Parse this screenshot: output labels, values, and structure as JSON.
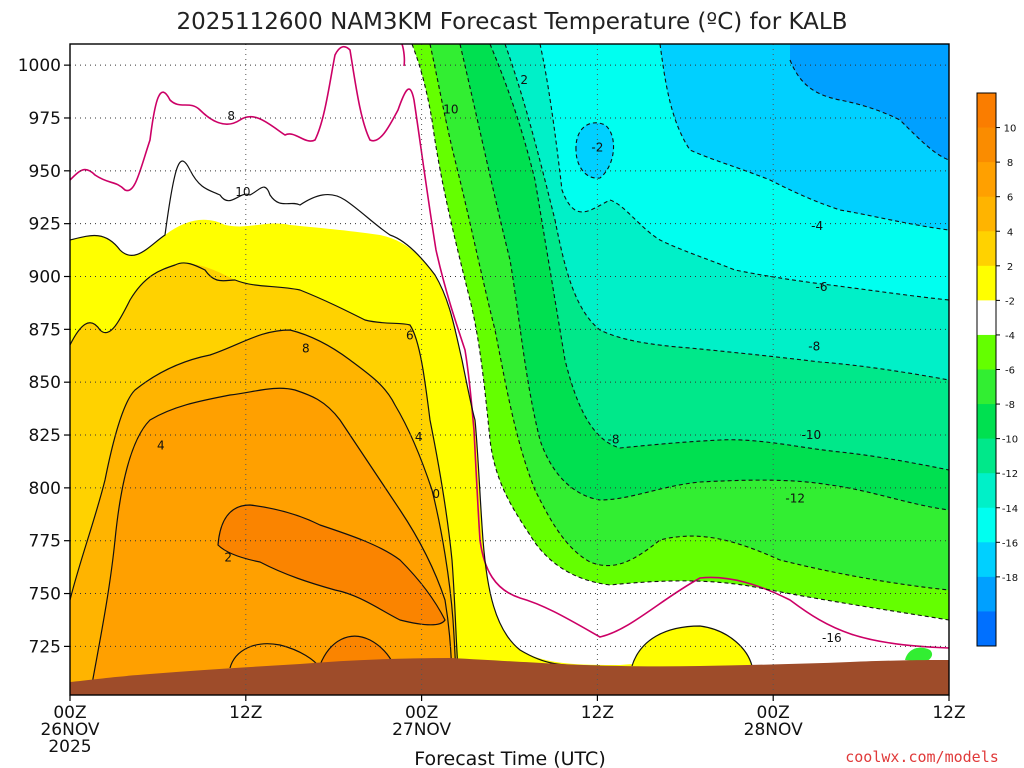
{
  "chart_data": {
    "type": "heatmap",
    "title": "2025112600 NAM3KM Forecast Temperature (ºC) for KALB",
    "xlabel": "Forecast Time (UTC)",
    "ylabel": "",
    "credit": "coolwx.com/models",
    "x_ticks": [
      {
        "hour": 0,
        "lines": [
          "00Z",
          "26NOV",
          "2025"
        ]
      },
      {
        "hour": 12,
        "lines": [
          "12Z"
        ]
      },
      {
        "hour": 24,
        "lines": [
          "00Z",
          "27NOV"
        ]
      },
      {
        "hour": 36,
        "lines": [
          "12Z"
        ]
      },
      {
        "hour": 48,
        "lines": [
          "00Z",
          "28NOV"
        ]
      },
      {
        "hour": 60,
        "lines": [
          "12Z"
        ]
      }
    ],
    "xlim": [
      0,
      60
    ],
    "y_ticks": [
      725,
      750,
      775,
      800,
      825,
      850,
      875,
      900,
      925,
      950,
      975,
      1000
    ],
    "ylim": [
      1010,
      702
    ],
    "colorbar": {
      "levels": [
        12,
        10,
        8,
        6,
        4,
        2,
        -2,
        -4,
        -6,
        -8,
        -10,
        -12,
        -14,
        -16,
        -18,
        -20
      ],
      "labels": [
        "10",
        "8",
        "6",
        "4",
        "2",
        "-2",
        "-4",
        "-6",
        "-8",
        "-10",
        "-12",
        "-14",
        "-16",
        "-18"
      ],
      "colors": [
        "#fa7d00",
        "#fa8c00",
        "#ffa000",
        "#ffb400",
        "#ffd200",
        "#ffff00",
        "#ffffff",
        "#64ff00",
        "#32ee32",
        "#00e050",
        "#00e88a",
        "#00f0c8",
        "#00fff0",
        "#00d0ff",
        "#00a0ff",
        "#0070ff"
      ]
    },
    "region_colors": {
      "ground": "#9e4c2a",
      "t10": "#fa8400",
      "t8": "#ffa000",
      "t6": "#ffb400",
      "t4": "#ffd200",
      "t2": "#ffff00",
      "t0": "#ffffff",
      "tm2": "#64ff00",
      "tm4": "#32ee32",
      "tm6": "#00e050",
      "tm8": "#00e88a",
      "tm10": "#00f0c8",
      "tm12": "#00fff0",
      "tm14": "#00d0ff",
      "tm16": "#00a0ff"
    },
    "contour_labels": [
      {
        "text": "2",
        "hour": 10.8,
        "p": 767
      },
      {
        "text": "4",
        "hour": 6.2,
        "p": 820
      },
      {
        "text": "0",
        "hour": 25.0,
        "p": 797
      },
      {
        "text": "4",
        "hour": 23.8,
        "p": 824
      },
      {
        "text": "8",
        "hour": 16.1,
        "p": 866
      },
      {
        "text": "6",
        "hour": 23.2,
        "p": 872
      },
      {
        "text": "10",
        "hour": 11.8,
        "p": 940
      },
      {
        "text": "8",
        "hour": 11.0,
        "p": 976
      },
      {
        "text": "10",
        "hour": 26.0,
        "p": 979
      },
      {
        "text": "2",
        "hour": 31.0,
        "p": 993
      },
      {
        "text": "-2",
        "hour": 36.0,
        "p": 961
      },
      {
        "text": "-4",
        "hour": 51.0,
        "p": 924
      },
      {
        "text": "-6",
        "hour": 51.3,
        "p": 895
      },
      {
        "text": "-8",
        "hour": 50.8,
        "p": 867
      },
      {
        "text": "-8",
        "hour": 37.1,
        "p": 823
      },
      {
        "text": "-10",
        "hour": 50.6,
        "p": 825
      },
      {
        "text": "-12",
        "hour": 49.5,
        "p": 795
      },
      {
        "text": "-16",
        "hour": 52.0,
        "p": 729
      }
    ]
  }
}
